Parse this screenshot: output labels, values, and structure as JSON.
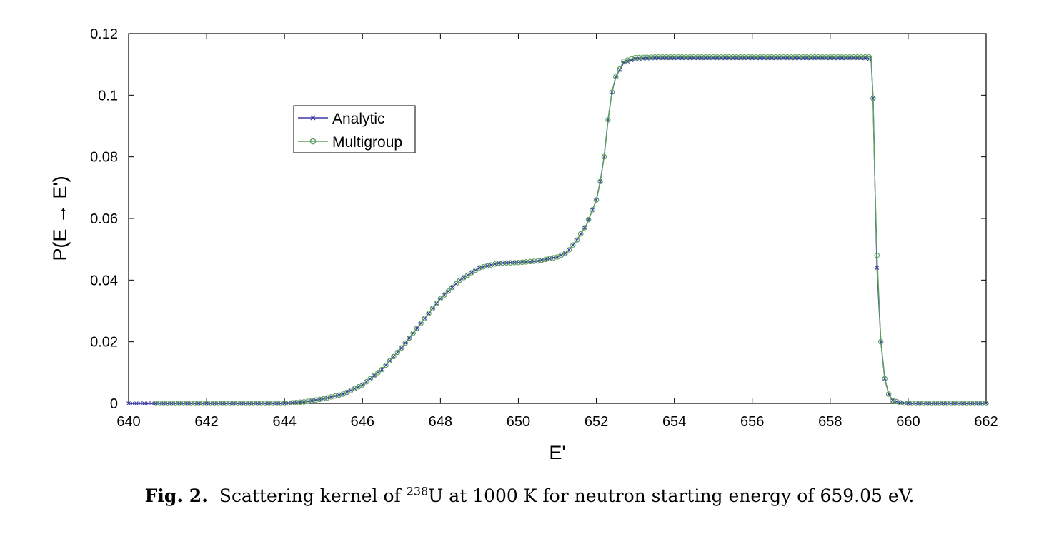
{
  "chart_data": {
    "type": "line",
    "xlabel": "E'",
    "ylabel": "P(E → E')",
    "xlim": [
      640,
      662
    ],
    "ylim": [
      0,
      0.12
    ],
    "xticks": [
      "640",
      "642",
      "644",
      "646",
      "648",
      "650",
      "652",
      "654",
      "656",
      "658",
      "660",
      "662"
    ],
    "yticks": [
      "0",
      "0.02",
      "0.04",
      "0.06",
      "0.08",
      "0.1",
      "0.12"
    ],
    "grid": false,
    "legend_position": "upper-left",
    "series": [
      {
        "name": "Analytic",
        "color": "#3a3aa8",
        "marker": "x",
        "x": [
          640.0,
          641.0,
          642.0,
          643.0,
          644.0,
          644.5,
          645.0,
          645.5,
          646.0,
          646.5,
          647.0,
          647.5,
          648.0,
          648.5,
          649.0,
          649.5,
          650.0,
          650.5,
          651.0,
          651.25,
          651.5,
          651.75,
          652.0,
          652.1,
          652.2,
          652.3,
          652.4,
          652.5,
          652.7,
          653.0,
          653.5,
          654.0,
          655.0,
          656.0,
          657.0,
          658.0,
          658.95,
          659.05,
          659.1,
          659.15,
          659.2,
          659.3,
          659.4,
          659.5,
          659.6,
          659.8,
          660.0,
          661.0,
          662.0
        ],
        "y": [
          0,
          0,
          0,
          0,
          0,
          0.0005,
          0.0015,
          0.003,
          0.006,
          0.011,
          0.018,
          0.026,
          0.034,
          0.04,
          0.044,
          0.0455,
          0.0457,
          0.0462,
          0.0475,
          0.049,
          0.053,
          0.058,
          0.066,
          0.072,
          0.08,
          0.092,
          0.101,
          0.106,
          0.1105,
          0.1118,
          0.112,
          0.112,
          0.112,
          0.112,
          0.112,
          0.112,
          0.112,
          0.1115,
          0.099,
          0.07,
          0.044,
          0.02,
          0.008,
          0.003,
          0.001,
          0.0002,
          0,
          0,
          0
        ]
      },
      {
        "name": "Multigroup",
        "color": "#5fa05f",
        "marker": "o",
        "x": [
          640.7,
          641.0,
          642.0,
          643.0,
          644.0,
          644.5,
          645.0,
          645.5,
          646.0,
          646.5,
          647.0,
          647.5,
          648.0,
          648.5,
          649.0,
          649.5,
          650.0,
          650.5,
          651.0,
          651.25,
          651.5,
          651.75,
          652.0,
          652.1,
          652.2,
          652.3,
          652.4,
          652.5,
          652.7,
          653.0,
          653.5,
          654.0,
          655.0,
          656.0,
          657.0,
          658.0,
          658.95,
          659.05,
          659.1,
          659.15,
          659.2,
          659.3,
          659.4,
          659.5,
          659.6,
          659.8,
          660.0,
          661.0,
          662.0
        ],
        "y": [
          0,
          0,
          0,
          0,
          0,
          0.0005,
          0.0015,
          0.003,
          0.006,
          0.011,
          0.018,
          0.026,
          0.034,
          0.04,
          0.044,
          0.0455,
          0.0457,
          0.0462,
          0.0475,
          0.049,
          0.053,
          0.058,
          0.066,
          0.072,
          0.08,
          0.092,
          0.101,
          0.106,
          0.111,
          0.1122,
          0.1124,
          0.1124,
          0.1124,
          0.1124,
          0.1124,
          0.1124,
          0.1124,
          0.1124,
          0.099,
          0.07,
          0.048,
          0.02,
          0.008,
          0.003,
          0.001,
          0.0002,
          0,
          0,
          0
        ]
      }
    ]
  },
  "caption": {
    "label": "Fig. 2.",
    "text_before": "Scattering kernel of",
    "superscript": "238",
    "text_after": "U at 1000 K for neutron starting energy of 659.05 eV."
  }
}
